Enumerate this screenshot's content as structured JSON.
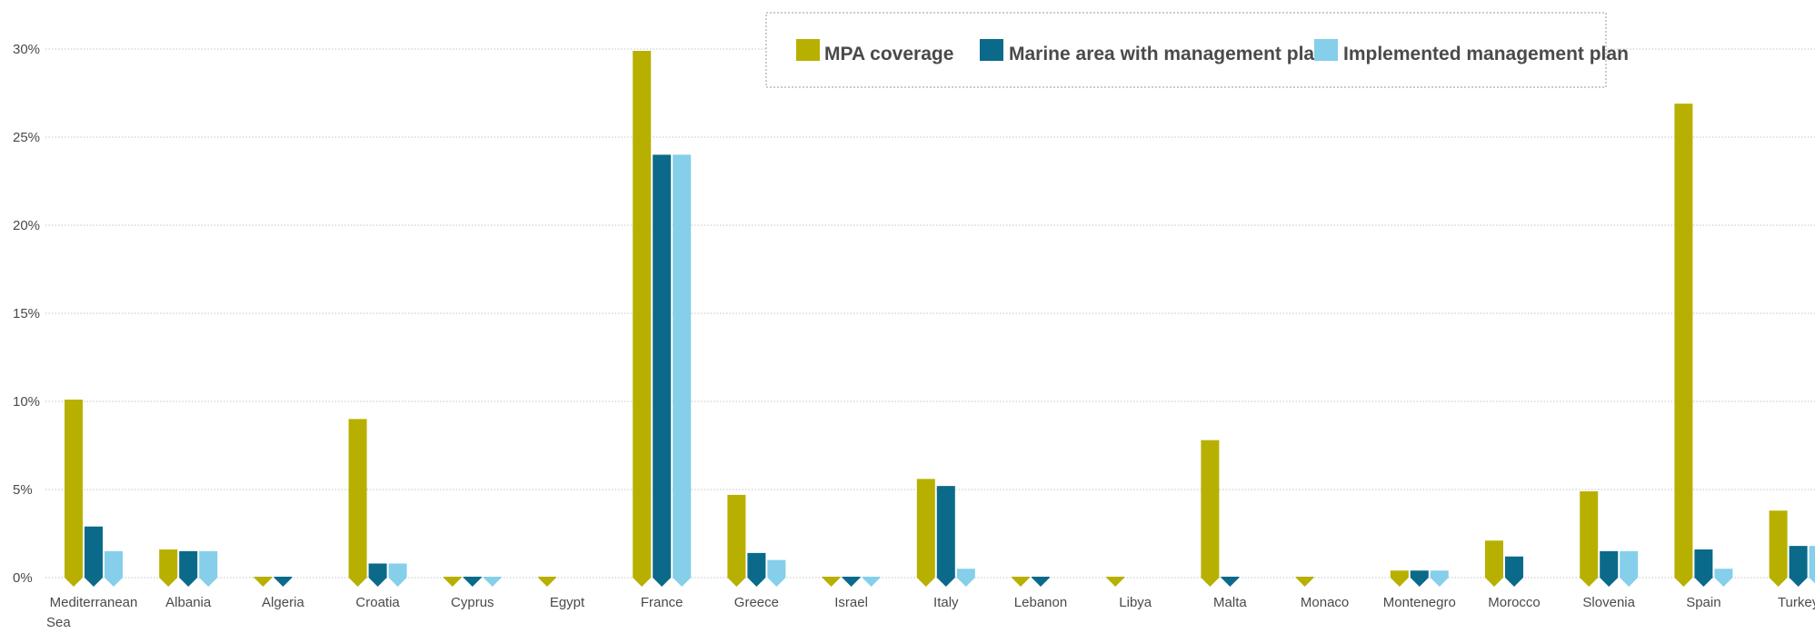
{
  "chart_data": {
    "type": "bar",
    "title": "",
    "xlabel": "",
    "ylabel": "",
    "ylim": [
      0,
      30
    ],
    "yticks": [
      0,
      5,
      10,
      15,
      20,
      25,
      30
    ],
    "ytick_labels": [
      "0%",
      "5%",
      "10%",
      "15%",
      "20%",
      "25%",
      "30%"
    ],
    "grid": true,
    "legend_position": "top",
    "categories": [
      "Mediterranean Sea",
      "Albania",
      "Algeria",
      "Croatia",
      "Cyprus",
      "Egypt",
      "France",
      "Greece",
      "Israel",
      "Italy",
      "Lebanon",
      "Libya",
      "Malta",
      "Monaco",
      "Montenegro",
      "Morocco",
      "Slovenia",
      "Spain",
      "Turkey"
    ],
    "series": [
      {
        "name": "MPA coverage",
        "color": "#b8b000",
        "values": [
          10.1,
          1.6,
          0.0,
          9.0,
          0.0,
          0.0,
          29.9,
          4.7,
          0.0,
          5.6,
          0.0,
          0.0,
          7.8,
          0.0,
          0.4,
          2.1,
          4.9,
          26.9,
          3.8
        ]
      },
      {
        "name": "Marine area with management plan",
        "color": "#0b6a8a",
        "values": [
          2.9,
          1.5,
          0.0,
          0.8,
          0.0,
          null,
          24.0,
          1.4,
          0.0,
          5.2,
          0.0,
          null,
          0.0,
          null,
          0.4,
          1.2,
          1.5,
          1.6,
          1.8
        ]
      },
      {
        "name": "Implemented management plan",
        "color": "#85cfea",
        "values": [
          1.5,
          1.5,
          null,
          0.8,
          0.0,
          null,
          24.0,
          1.0,
          0.0,
          0.5,
          null,
          null,
          null,
          null,
          0.4,
          null,
          1.5,
          0.5,
          1.8
        ]
      }
    ]
  }
}
